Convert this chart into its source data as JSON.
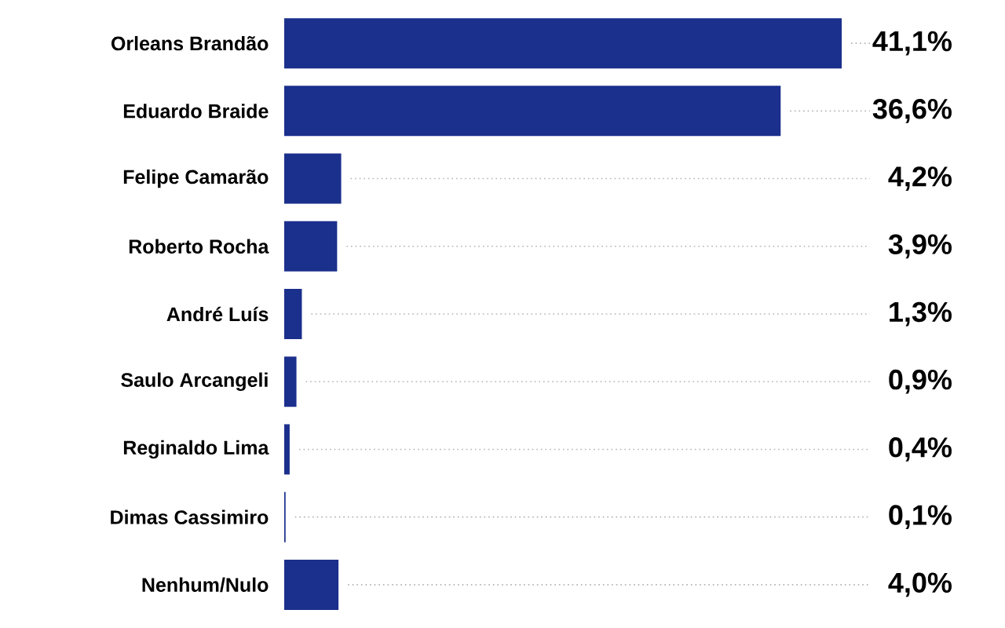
{
  "chart_data": {
    "type": "bar",
    "orientation": "horizontal",
    "color": "#1b2f8c",
    "categories": [
      "Orleans Brandão",
      "Eduardo Braide",
      "Felipe Camarão",
      "Roberto Rocha",
      "André Luís",
      "Saulo Arcangeli",
      "Reginaldo Lima",
      "Dimas Cassimiro",
      "Nenhum/Nulo"
    ],
    "values": [
      41.1,
      36.6,
      4.2,
      3.9,
      1.3,
      0.9,
      0.4,
      0.1,
      4.0
    ],
    "value_labels": [
      "41,1%",
      "36,6%",
      "4,2%",
      "3,9%",
      "1,3%",
      "0,9%",
      "0,4%",
      "0,1%",
      "4,0%"
    ]
  }
}
